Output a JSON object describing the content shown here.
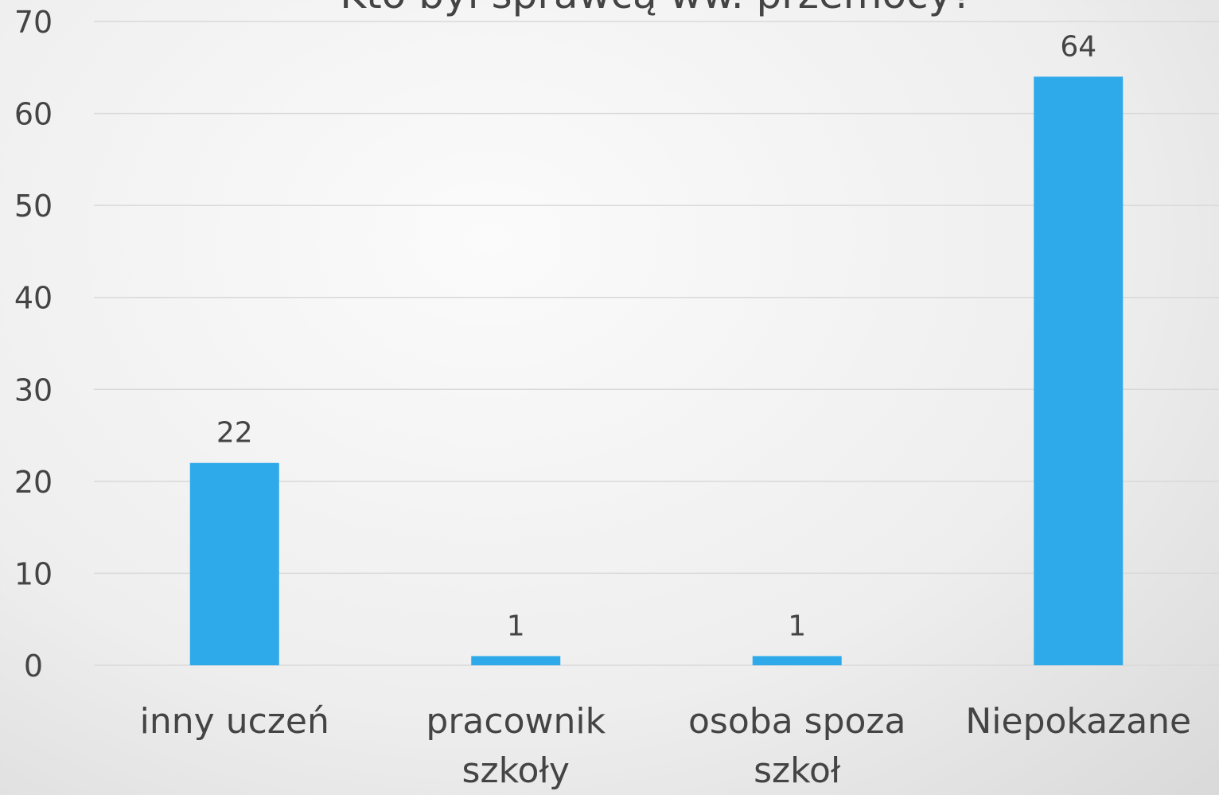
{
  "chart_data": {
    "type": "bar",
    "title": "Kto był sprawcą ww. przemocy?",
    "categories": [
      "inny uczeń",
      "pracownik szkoły",
      "osoba spoza szkoł",
      "Niepokazane"
    ],
    "values": [
      22,
      1,
      1,
      64
    ],
    "color": "#2eaaea",
    "ylim": [
      0,
      70
    ],
    "yticks": [
      0,
      10,
      20,
      30,
      40,
      50,
      60,
      70
    ],
    "grid": true
  }
}
